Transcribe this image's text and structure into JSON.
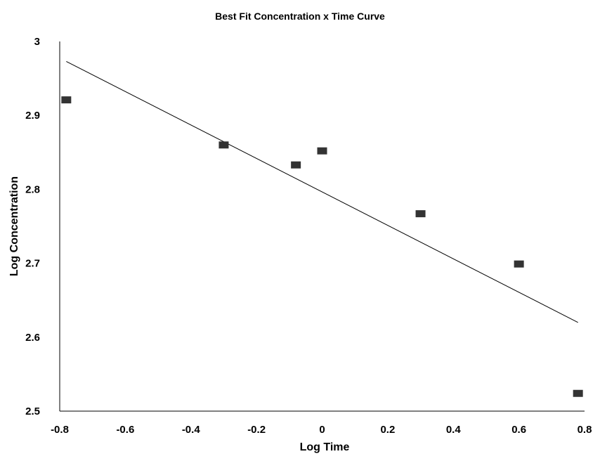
{
  "chart_data": {
    "type": "scatter",
    "title": "Best Fit Concentration x Time Curve",
    "xlabel": "Log Time",
    "ylabel": "Log Concentration",
    "xlim": [
      -0.8,
      0.8
    ],
    "ylim": [
      2.5,
      3
    ],
    "xticks": [
      "-0.8",
      "-0.6",
      "-0.4",
      "-0.2",
      "0",
      "0.2",
      "0.4",
      "0.6",
      "0.8"
    ],
    "yticks": [
      "2.5",
      "2.6",
      "2.7",
      "2.8",
      "2.9",
      "3"
    ],
    "grid": false,
    "legend": "none",
    "series": [
      {
        "marker": "square",
        "color": "#333333",
        "points": [
          {
            "x": -0.78,
            "y": 2.921
          },
          {
            "x": -0.3,
            "y": 2.86
          },
          {
            "x": -0.08,
            "y": 2.833
          },
          {
            "x": 0.0,
            "y": 2.852
          },
          {
            "x": 0.3,
            "y": 2.767
          },
          {
            "x": 0.6,
            "y": 2.699
          },
          {
            "x": 0.78,
            "y": 2.524
          }
        ]
      }
    ],
    "trendline": {
      "color": "#000000",
      "points": [
        {
          "x": -0.78,
          "y": 2.973
        },
        {
          "x": 0.78,
          "y": 2.62
        }
      ]
    }
  }
}
